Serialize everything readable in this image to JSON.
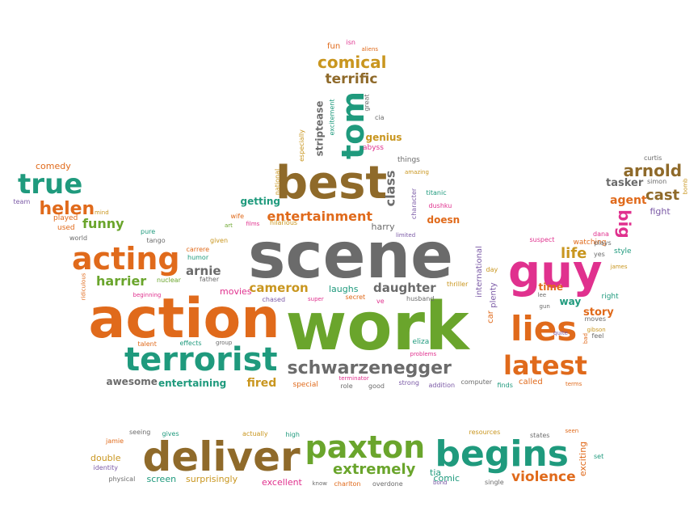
{
  "palette": {
    "gray": "#6b6b6b",
    "orange": "#e06a1b",
    "green": "#6aa52c",
    "teal": "#1f9a7d",
    "magenta": "#e0318e",
    "gold": "#c9961f",
    "brown": "#8f6a2a",
    "purple": "#7b5aa6",
    "light_green": "#9cbf3e"
  },
  "words": [
    {
      "text": "scene",
      "color": "gray"
    },
    {
      "text": "work",
      "color": "green"
    },
    {
      "text": "action",
      "color": "orange"
    },
    {
      "text": "best",
      "color": "brown"
    },
    {
      "text": "guy",
      "color": "magenta"
    },
    {
      "text": "deliver",
      "color": "brown"
    },
    {
      "text": "begins",
      "color": "teal"
    },
    {
      "text": "paxton",
      "color": "green"
    },
    {
      "text": "terrorist",
      "color": "teal"
    },
    {
      "text": "lies",
      "color": "orange"
    },
    {
      "text": "latest",
      "color": "orange"
    },
    {
      "text": "tom",
      "color": "teal"
    },
    {
      "text": "acting",
      "color": "orange"
    },
    {
      "text": "true",
      "color": "teal"
    },
    {
      "text": "schwarzenegger",
      "color": "gray"
    },
    {
      "text": "helen",
      "color": "orange"
    },
    {
      "text": "arnold",
      "color": "brown"
    },
    {
      "text": "cast",
      "color": "brown"
    },
    {
      "text": "comical",
      "color": "gold"
    },
    {
      "text": "terrific",
      "color": "brown"
    },
    {
      "text": "entertainment",
      "color": "orange"
    },
    {
      "text": "funny",
      "color": "green"
    },
    {
      "text": "harrier",
      "color": "green"
    },
    {
      "text": "arnie",
      "color": "gray"
    },
    {
      "text": "cameron",
      "color": "gold"
    },
    {
      "text": "daughter",
      "color": "gray"
    },
    {
      "text": "class",
      "color": "gray"
    },
    {
      "text": "life",
      "color": "gold"
    },
    {
      "text": "big",
      "color": "magenta"
    },
    {
      "text": "extremely",
      "color": "green"
    },
    {
      "text": "violence",
      "color": "orange"
    },
    {
      "text": "fired",
      "color": "gold"
    },
    {
      "text": "awesome",
      "color": "gray"
    },
    {
      "text": "entertaining",
      "color": "teal"
    },
    {
      "text": "comedy",
      "color": "orange"
    },
    {
      "text": "genius",
      "color": "gold"
    },
    {
      "text": "striptease",
      "color": "gray"
    },
    {
      "text": "agent",
      "color": "orange"
    },
    {
      "text": "tasker",
      "color": "gray"
    },
    {
      "text": "fight",
      "color": "purple"
    },
    {
      "text": "story",
      "color": "orange"
    },
    {
      "text": "way",
      "color": "teal"
    },
    {
      "text": "time",
      "color": "orange"
    },
    {
      "text": "movies",
      "color": "magenta"
    },
    {
      "text": "laughs",
      "color": "teal"
    },
    {
      "text": "harry",
      "color": "gray"
    },
    {
      "text": "doesn",
      "color": "orange"
    },
    {
      "text": "international",
      "color": "purple"
    },
    {
      "text": "plenty",
      "color": "purple"
    },
    {
      "text": "car",
      "color": "orange"
    },
    {
      "text": "screen",
      "color": "teal"
    },
    {
      "text": "surprisingly",
      "color": "gold"
    },
    {
      "text": "excellent",
      "color": "magenta"
    },
    {
      "text": "comic",
      "color": "teal"
    },
    {
      "text": "double",
      "color": "gold"
    },
    {
      "text": "exciting",
      "color": "orange"
    },
    {
      "text": "tia",
      "color": "teal"
    },
    {
      "text": "called",
      "color": "orange"
    },
    {
      "text": "fun",
      "color": "orange"
    },
    {
      "text": "isn",
      "color": "magenta"
    },
    {
      "text": "aliens",
      "color": "orange"
    },
    {
      "text": "excitement",
      "color": "teal"
    },
    {
      "text": "especially",
      "color": "gold"
    },
    {
      "text": "national",
      "color": "gold"
    },
    {
      "text": "great",
      "color": "gray"
    },
    {
      "text": "cia",
      "color": "gray"
    },
    {
      "text": "abyss",
      "color": "magenta"
    },
    {
      "text": "things",
      "color": "gray"
    },
    {
      "text": "amazing",
      "color": "gold"
    },
    {
      "text": "character",
      "color": "purple"
    },
    {
      "text": "dushku",
      "color": "magenta"
    },
    {
      "text": "titanic",
      "color": "teal"
    },
    {
      "text": "getting",
      "color": "teal"
    },
    {
      "text": "wife",
      "color": "orange"
    },
    {
      "text": "art",
      "color": "green"
    },
    {
      "text": "films",
      "color": "magenta"
    },
    {
      "text": "hilarious",
      "color": "gold"
    },
    {
      "text": "limited",
      "color": "purple"
    },
    {
      "text": "team",
      "color": "purple"
    },
    {
      "text": "mind",
      "color": "gold"
    },
    {
      "text": "played",
      "color": "orange"
    },
    {
      "text": "used",
      "color": "orange"
    },
    {
      "text": "world",
      "color": "gray"
    },
    {
      "text": "pure",
      "color": "teal"
    },
    {
      "text": "tango",
      "color": "gray"
    },
    {
      "text": "given",
      "color": "gold"
    },
    {
      "text": "carrere",
      "color": "orange"
    },
    {
      "text": "humor",
      "color": "teal"
    },
    {
      "text": "nuclear",
      "color": "green"
    },
    {
      "text": "father",
      "color": "gray"
    },
    {
      "text": "ridiculous",
      "color": "orange"
    },
    {
      "text": "beginning",
      "color": "magenta"
    },
    {
      "text": "talent",
      "color": "orange"
    },
    {
      "text": "effects",
      "color": "teal"
    },
    {
      "text": "group",
      "color": "gray"
    },
    {
      "text": "chased",
      "color": "purple"
    },
    {
      "text": "super",
      "color": "magenta"
    },
    {
      "text": "secret",
      "color": "orange"
    },
    {
      "text": "ve",
      "color": "magenta"
    },
    {
      "text": "husband",
      "color": "gray"
    },
    {
      "text": "thriller",
      "color": "gold"
    },
    {
      "text": "terminator",
      "color": "magenta"
    },
    {
      "text": "problems",
      "color": "magenta"
    },
    {
      "text": "eliza",
      "color": "teal"
    },
    {
      "text": "special",
      "color": "orange"
    },
    {
      "text": "role",
      "color": "gray"
    },
    {
      "text": "good",
      "color": "gray"
    },
    {
      "text": "strong",
      "color": "purple"
    },
    {
      "text": "addition",
      "color": "purple"
    },
    {
      "text": "computer",
      "color": "gray"
    },
    {
      "text": "finds",
      "color": "teal"
    },
    {
      "text": "terms",
      "color": "orange"
    },
    {
      "text": "day",
      "color": "gold"
    },
    {
      "text": "lee",
      "color": "gray"
    },
    {
      "text": "gun",
      "color": "gray"
    },
    {
      "text": "suspect",
      "color": "magenta"
    },
    {
      "text": "watching",
      "color": "orange"
    },
    {
      "text": "yes",
      "color": "gray"
    },
    {
      "text": "right",
      "color": "teal"
    },
    {
      "text": "james",
      "color": "gold"
    },
    {
      "text": "style",
      "color": "teal"
    },
    {
      "text": "moves",
      "color": "gray"
    },
    {
      "text": "gibson",
      "color": "gold"
    },
    {
      "text": "quite",
      "color": "purple"
    },
    {
      "text": "bad",
      "color": "orange"
    },
    {
      "text": "feel",
      "color": "gray"
    },
    {
      "text": "dana",
      "color": "magenta"
    },
    {
      "text": "plays",
      "color": "gray"
    },
    {
      "text": "curtis",
      "color": "gray"
    },
    {
      "text": "simon",
      "color": "gray"
    },
    {
      "text": "bomb",
      "color": "gold"
    },
    {
      "text": "seeing",
      "color": "gray"
    },
    {
      "text": "gives",
      "color": "teal"
    },
    {
      "text": "actually",
      "color": "gold"
    },
    {
      "text": "high",
      "color": "teal"
    },
    {
      "text": "resources",
      "color": "gold"
    },
    {
      "text": "states",
      "color": "gray"
    },
    {
      "text": "seen",
      "color": "orange"
    },
    {
      "text": "jamie",
      "color": "orange"
    },
    {
      "text": "identity",
      "color": "purple"
    },
    {
      "text": "physical",
      "color": "gray"
    },
    {
      "text": "know",
      "color": "gray"
    },
    {
      "text": "charlton",
      "color": "orange"
    },
    {
      "text": "overdone",
      "color": "gray"
    },
    {
      "text": "bond",
      "color": "purple"
    },
    {
      "text": "single",
      "color": "gray"
    },
    {
      "text": "set",
      "color": "teal"
    }
  ]
}
